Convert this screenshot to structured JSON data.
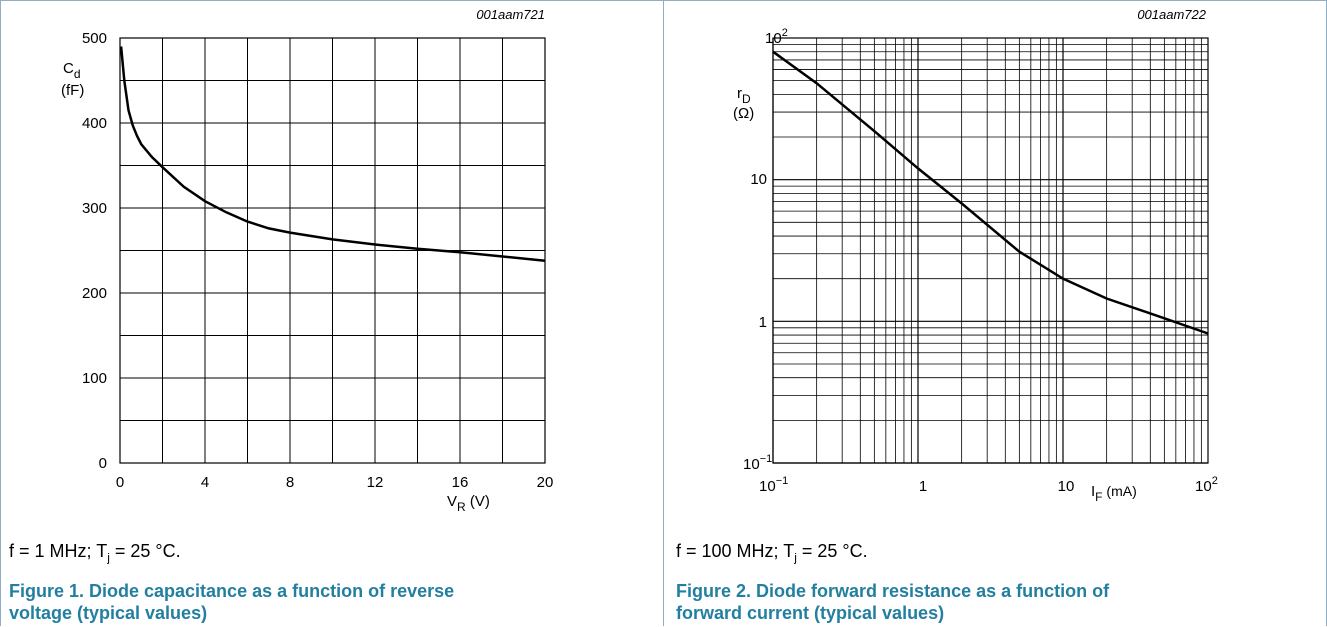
{
  "chart_data": [
    {
      "type": "line",
      "figure_code": "001aam721",
      "ylabel_main": "C",
      "ylabel_sub": "d",
      "ylabel_unit": "(fF)",
      "xlabel_main": "V",
      "xlabel_sub": "R",
      "xlabel_unit": " (V)",
      "xlim": [
        0,
        20
      ],
      "ylim": [
        0,
        500
      ],
      "x_ticks": [
        "0",
        "4",
        "8",
        "12",
        "16",
        "20"
      ],
      "y_ticks": [
        "0",
        "100",
        "200",
        "300",
        "400",
        "500"
      ],
      "grid": true,
      "x": [
        0.05,
        0.2,
        0.4,
        0.6,
        0.8,
        1,
        1.5,
        2,
        3,
        4,
        5,
        6,
        7,
        8,
        10,
        12,
        14,
        16,
        18,
        20
      ],
      "y": [
        490,
        450,
        415,
        397,
        385,
        375,
        360,
        348,
        325,
        308,
        295,
        284,
        276,
        271,
        263,
        257,
        252,
        248,
        243,
        238
      ],
      "conditions_prefix": "f = 1 MHz; T",
      "conditions_sub": "j",
      "conditions_suffix": " = 25 °C.",
      "caption_line1": "Figure 1.  Diode capacitance as a function of reverse",
      "caption_line2": "voltage (typical values)"
    },
    {
      "type": "line",
      "figure_code": "001aam722",
      "ylabel_main": "r",
      "ylabel_sub": "D",
      "ylabel_unit": "(Ω)",
      "xlabel_main": "I",
      "xlabel_sub": "F",
      "xlabel_unit": " (mA)",
      "x_scale": "log",
      "y_scale": "log",
      "xlim": [
        0.1,
        100
      ],
      "ylim": [
        0.1,
        100
      ],
      "x_tick_labels": {
        "base_first": "10",
        "exp_first": "−1",
        "mid1": "1",
        "mid2": "10",
        "base_last": "10",
        "exp_last": "2"
      },
      "y_tick_labels": {
        "base_top": "10",
        "exp_top": "2",
        "mid1": "10",
        "mid2": "1",
        "base_bottom": "10",
        "exp_bottom": "−1"
      },
      "grid": true,
      "x": [
        0.1,
        0.2,
        0.5,
        1,
        2,
        5,
        10,
        20,
        50,
        100
      ],
      "y": [
        80,
        48,
        22,
        12,
        6.8,
        3.1,
        2.0,
        1.45,
        1.05,
        0.82
      ],
      "conditions_prefix": "f = 100 MHz; T",
      "conditions_sub": "j",
      "conditions_suffix": " = 25 °C.",
      "caption_line1": "Figure 2.  Diode forward resistance as a function of",
      "caption_line2": "forward current (typical values)"
    }
  ]
}
